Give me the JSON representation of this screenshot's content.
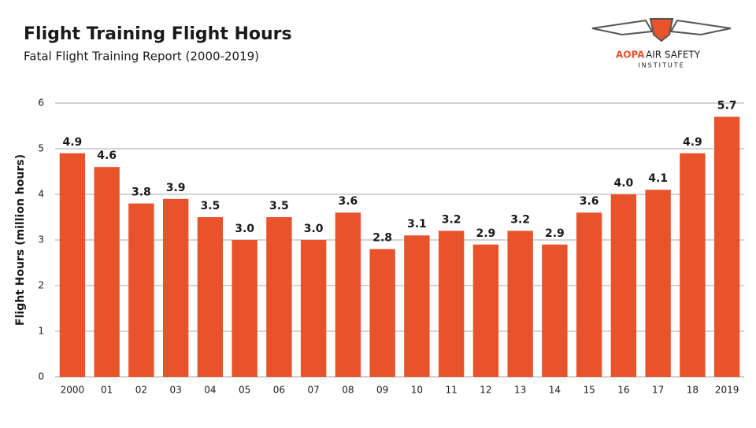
{
  "chart_data": {
    "type": "bar",
    "title": "Flight Training Flight Hours",
    "subtitle": "Fatal Flight Training Report (2000-2019)",
    "y_label": "Flight Hours (million hours)",
    "logo": {
      "brand": "AOPA",
      "name": "AIR SAFETY",
      "sub": "INSTITUTE"
    },
    "categories": [
      "2000",
      "01",
      "02",
      "03",
      "04",
      "05",
      "06",
      "07",
      "08",
      "09",
      "10",
      "11",
      "12",
      "13",
      "14",
      "15",
      "16",
      "17",
      "18",
      "2019"
    ],
    "values": [
      4.9,
      4.6,
      3.8,
      3.9,
      3.5,
      3.0,
      3.5,
      3.0,
      3.6,
      2.8,
      3.1,
      3.2,
      2.9,
      3.2,
      2.9,
      3.6,
      4.0,
      4.1,
      4.9,
      5.7
    ],
    "value_labels": [
      "4.9",
      "4.6",
      "3.8",
      "3.9",
      "3.5",
      "3.0",
      "3.5",
      "3.0",
      "3.6",
      "2.8",
      "3.1",
      "3.2",
      "2.9",
      "3.2",
      "2.9",
      "3.6",
      "4.0",
      "4.1",
      "4.9",
      "5.7"
    ],
    "color": "#e8532b",
    "ylim": [
      0,
      6
    ],
    "yticks": [
      0,
      1,
      2,
      3,
      4,
      5,
      6
    ],
    "grid": true
  }
}
